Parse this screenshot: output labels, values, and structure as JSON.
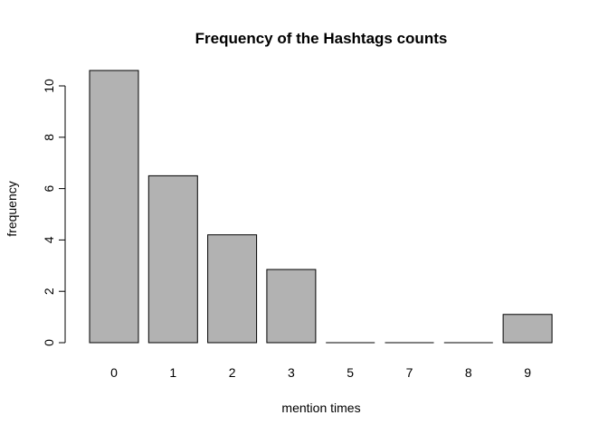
{
  "chart_data": {
    "type": "bar",
    "title": "Frequency of the Hashtags counts",
    "xlabel": "mention times",
    "ylabel": "frequency",
    "categories": [
      "0",
      "1",
      "2",
      "3",
      "5",
      "7",
      "8",
      "9"
    ],
    "values": [
      10.6,
      6.5,
      4.2,
      2.85,
      0,
      0,
      0,
      1.1
    ],
    "ylim": [
      0,
      11
    ],
    "yticks": [
      0,
      2,
      4,
      6,
      8,
      10
    ],
    "grid": false,
    "bar_color": "#b2b2b2",
    "bar_border_color": "#000000"
  }
}
